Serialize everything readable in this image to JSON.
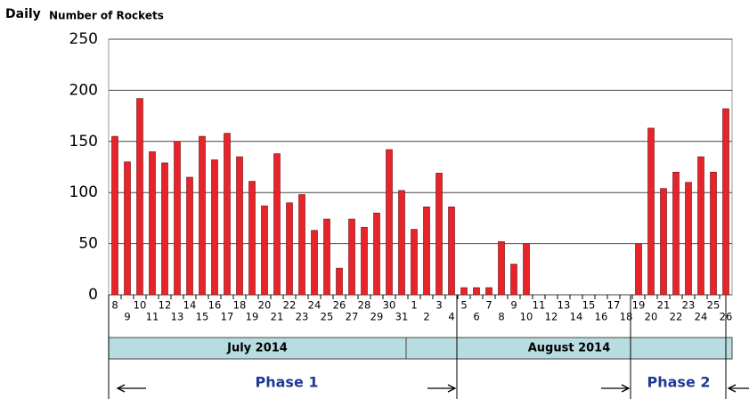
{
  "chart_data": {
    "type": "bar",
    "title": "Daily",
    "subtitle": "Number of Rockets",
    "categories": [
      "8",
      "9",
      "10",
      "11",
      "12",
      "13",
      "14",
      "15",
      "16",
      "17",
      "18",
      "19",
      "20",
      "21",
      "22",
      "23",
      "24",
      "25",
      "26",
      "27",
      "28",
      "29",
      "30",
      "31",
      "1",
      "2",
      "3",
      "4",
      "5",
      "6",
      "7",
      "8",
      "9",
      "10",
      "11",
      "12",
      "13",
      "14",
      "15",
      "16",
      "17",
      "18",
      "19",
      "20",
      "21",
      "22",
      "23",
      "24",
      "25",
      "26"
    ],
    "values": [
      155,
      130,
      192,
      140,
      129,
      150,
      115,
      155,
      132,
      158,
      135,
      111,
      87,
      138,
      90,
      98,
      63,
      74,
      26,
      74,
      66,
      80,
      142,
      102,
      64,
      86,
      119,
      86,
      7,
      7,
      7,
      52,
      30,
      50,
      0,
      0,
      0,
      0,
      0,
      0,
      0,
      0,
      50,
      163,
      104,
      120,
      110,
      135,
      120,
      182
    ],
    "color": "#e8242a",
    "ylim": [
      0,
      250
    ],
    "yticks": [
      0,
      50,
      100,
      150,
      200,
      250
    ],
    "grid": true,
    "months": [
      "July 2014",
      "August 2014"
    ],
    "phases": [
      "Phase 1",
      "Phase 2"
    ]
  }
}
